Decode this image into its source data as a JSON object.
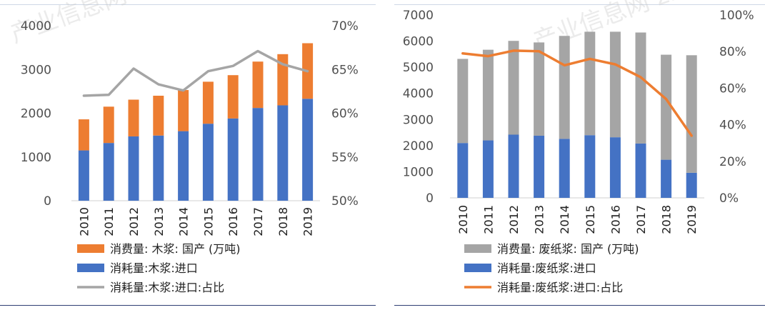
{
  "chart_data": [
    {
      "type": "bar",
      "stacked": true,
      "categories": [
        "2010",
        "2011",
        "2012",
        "2013",
        "2014",
        "2015",
        "2016",
        "2017",
        "2018",
        "2019"
      ],
      "series": [
        {
          "name": "消耗量:木浆:进口",
          "kind": "bar",
          "color": "#4472c4",
          "values": [
            1150,
            1320,
            1470,
            1490,
            1590,
            1760,
            1880,
            2120,
            2180,
            2330
          ]
        },
        {
          "name": "消费量: 木浆: 国产 (万吨)",
          "kind": "bar",
          "color": "#ed7d31",
          "values": [
            710,
            830,
            840,
            910,
            940,
            960,
            990,
            1060,
            1170,
            1270
          ]
        },
        {
          "name": "消耗量:木浆:进口:占比",
          "kind": "line",
          "axis": "right",
          "color": "#a5a5a5",
          "values": [
            62.0,
            62.1,
            65.1,
            63.3,
            62.6,
            64.8,
            65.4,
            67.1,
            65.6,
            64.8
          ]
        }
      ],
      "ylim": [
        0,
        4000
      ],
      "yticks": [
        "0",
        "1000",
        "2000",
        "3000",
        "4000"
      ],
      "y2lim": [
        50,
        70
      ],
      "y2ticks": [
        "50%",
        "55%",
        "60%",
        "65%",
        "70%"
      ],
      "legend_order": [
        1,
        0,
        2
      ],
      "watermark": "产业信息网 chanxinxi.com"
    },
    {
      "type": "bar",
      "stacked": true,
      "categories": [
        "2010",
        "2011",
        "2012",
        "2013",
        "2014",
        "2015",
        "2016",
        "2017",
        "2018",
        "2019"
      ],
      "series": [
        {
          "name": "消耗量:废纸浆:进口",
          "kind": "bar",
          "color": "#4472c4",
          "values": [
            2100,
            2200,
            2420,
            2380,
            2260,
            2400,
            2320,
            2080,
            1460,
            960
          ]
        },
        {
          "name": "消费量: 废纸浆: 国产 (万吨)",
          "kind": "bar",
          "color": "#a5a5a5",
          "values": [
            3220,
            3470,
            3590,
            3570,
            3940,
            3960,
            4040,
            4250,
            4020,
            4500
          ]
        },
        {
          "name": "消耗量:废纸浆:进口:占比",
          "kind": "line",
          "axis": "right",
          "color": "#ed7d31",
          "values": [
            79,
            77.5,
            80.5,
            80.2,
            72.5,
            76,
            73,
            66,
            54,
            34
          ]
        }
      ],
      "ylim": [
        0,
        7000
      ],
      "yticks": [
        "0",
        "1000",
        "2000",
        "3000",
        "4000",
        "5000",
        "6000",
        "7000"
      ],
      "y2lim": [
        0,
        100
      ],
      "y2ticks": [
        "0%",
        "20%",
        "40%",
        "60%",
        "80%",
        "100%"
      ],
      "legend_order": [
        1,
        0,
        2
      ],
      "watermark": "产业信息网 zichanxinxi.com"
    }
  ]
}
